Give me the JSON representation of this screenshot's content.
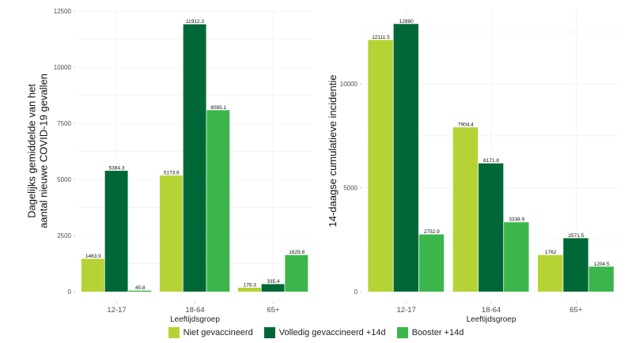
{
  "legend": [
    {
      "label": "Niet gevaccineerd",
      "color": "#b5d334"
    },
    {
      "label": "Volledig gevaccineerd +14d",
      "color": "#006837"
    },
    {
      "label": "Booster +14d",
      "color": "#3cb54a"
    }
  ],
  "chart_data": [
    {
      "type": "bar",
      "title": "",
      "xlabel": "Leeftijdsgroep",
      "ylabel": "Dagelijks gemiddelde van het\naantal nieuwe COVID-19 gevallen",
      "categories": [
        "12-17",
        "18-64",
        "65+"
      ],
      "ylim": [
        0,
        12500
      ],
      "yticks": [
        0,
        2500,
        5000,
        7500,
        10000,
        12500
      ],
      "ytick_labels": [
        "0",
        "2500",
        "5000",
        "7500",
        "10000",
        "12500"
      ],
      "grid": true,
      "series": [
        {
          "name": "Niet gevaccineerd",
          "values": [
            1463.9,
            5173.6,
            176.3
          ],
          "labels": [
            "1463.9",
            "5173.6",
            "176.3"
          ]
        },
        {
          "name": "Volledig gevaccineerd +14d",
          "values": [
            5384.3,
            11912.3,
            335.4
          ],
          "labels": [
            "5384.3",
            "11912.3",
            "335.4"
          ]
        },
        {
          "name": "Booster +14d",
          "values": [
            45.8,
            8085.1,
            1629.8
          ],
          "labels": [
            "45.8",
            "8085.1",
            "1629.8"
          ]
        }
      ]
    },
    {
      "type": "bar",
      "title": "",
      "xlabel": "Leeftijdsgroep",
      "ylabel": "14-daagse cumulatieve incidentie",
      "categories": [
        "12-17",
        "18-64",
        "65+"
      ],
      "ylim": [
        0,
        13500
      ],
      "yticks": [
        0,
        5000,
        10000
      ],
      "ytick_labels": [
        "0",
        "5000",
        "10000"
      ],
      "grid": true,
      "series": [
        {
          "name": "Niet gevaccineerd",
          "values": [
            12111.5,
            7904.4,
            1762
          ],
          "labels": [
            "12111.5",
            "7904.4",
            "1762"
          ]
        },
        {
          "name": "Volledig gevaccineerd +14d",
          "values": [
            12880,
            6171.8,
            2571.5
          ],
          "labels": [
            "12880",
            "6171.8",
            "2571.5"
          ]
        },
        {
          "name": "Booster +14d",
          "values": [
            2752.9,
            3338.9,
            1204.5
          ],
          "labels": [
            "2752.9",
            "3338.9",
            "1204.5"
          ]
        }
      ]
    }
  ]
}
